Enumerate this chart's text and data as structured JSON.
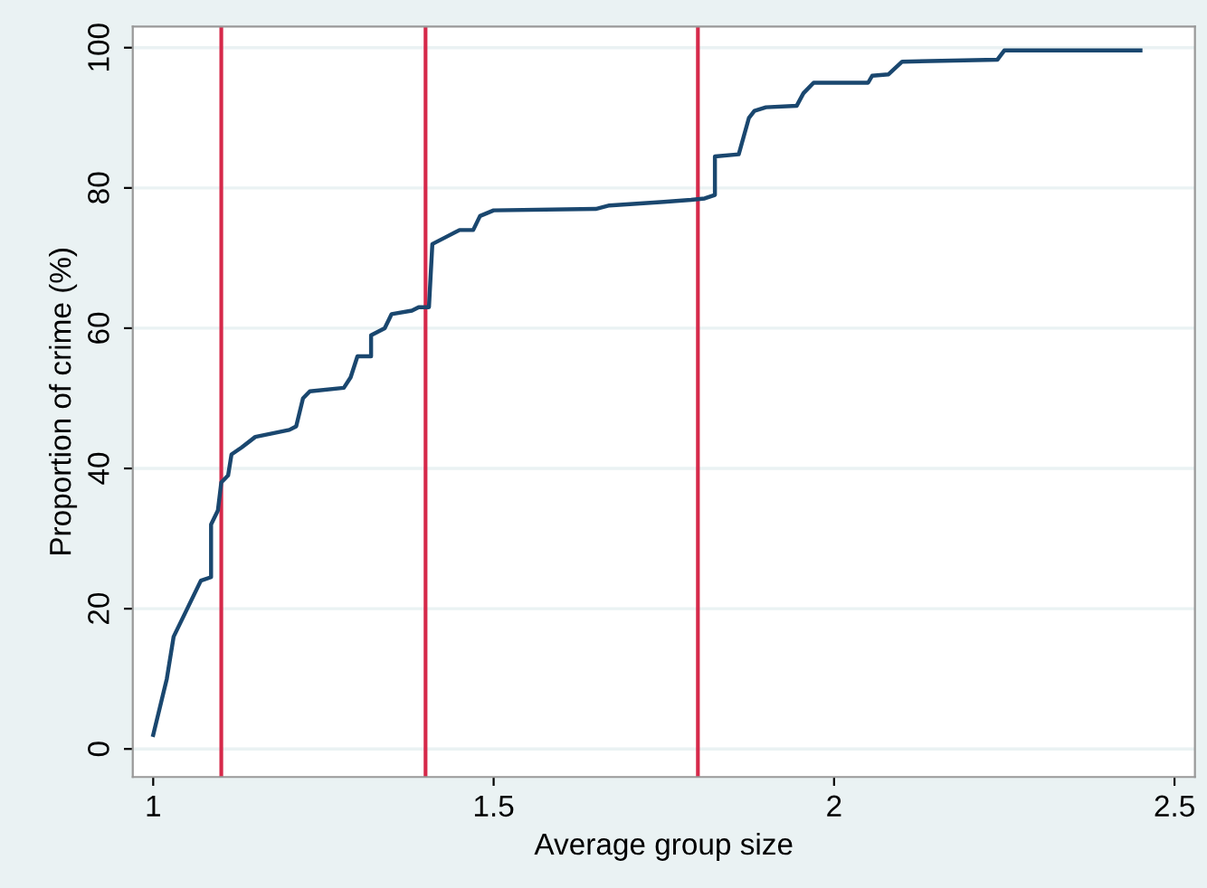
{
  "chart_data": {
    "type": "line",
    "xlabel": "Average group size",
    "ylabel": "Proportion of crime (%)",
    "xlim": [
      0.97,
      2.53
    ],
    "xticks": [
      1,
      1.5,
      2,
      2.5
    ],
    "ylim": [
      -4,
      103
    ],
    "yticks": [
      0,
      20,
      40,
      60,
      80,
      100
    ],
    "grid": "y",
    "series": [
      {
        "color": "#1a476f",
        "x": [
          1.0,
          1.01,
          1.02,
          1.03,
          1.05,
          1.06,
          1.07,
          1.085,
          1.085,
          1.095,
          1.1,
          1.11,
          1.115,
          1.13,
          1.15,
          1.2,
          1.21,
          1.22,
          1.23,
          1.28,
          1.29,
          1.3,
          1.32,
          1.32,
          1.34,
          1.35,
          1.38,
          1.39,
          1.405,
          1.41,
          1.43,
          1.45,
          1.47,
          1.48,
          1.5,
          1.65,
          1.67,
          1.75,
          1.79,
          1.81,
          1.825,
          1.825,
          1.86,
          1.875,
          1.883,
          1.9,
          1.945,
          1.955,
          1.97,
          2.05,
          2.056,
          2.08,
          2.1,
          2.24,
          2.25,
          2.45
        ],
        "values": [
          2,
          6,
          10,
          16,
          20,
          22,
          24,
          24.5,
          32,
          34,
          38,
          39,
          42,
          43,
          44.5,
          45.5,
          46,
          50,
          51,
          51.5,
          53,
          56,
          56,
          59,
          60,
          62,
          62.5,
          63,
          63,
          72,
          73,
          74,
          74,
          76,
          76.8,
          77,
          77.5,
          78,
          78.3,
          78.5,
          79,
          84.5,
          84.8,
          90,
          91,
          91.5,
          91.7,
          93.5,
          95,
          95,
          96,
          96.2,
          98,
          98.3,
          99.6,
          99.6
        ]
      }
    ],
    "ref_lines": [
      {
        "axis": "x",
        "value": 1.1,
        "color": "#d6294a"
      },
      {
        "axis": "x",
        "value": 1.4,
        "color": "#d6294a"
      },
      {
        "axis": "x",
        "value": 1.8,
        "color": "#d6294a"
      }
    ]
  }
}
